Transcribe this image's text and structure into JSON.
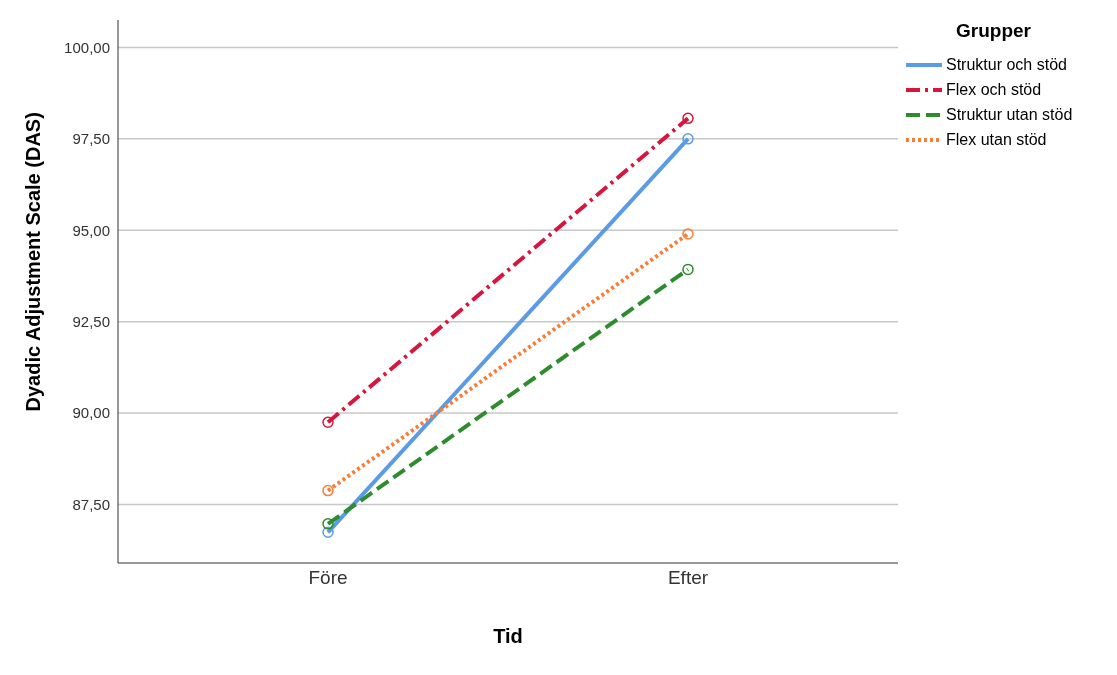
{
  "chart_data": {
    "type": "line",
    "xlabel": "Tid",
    "ylabel": "Dyadic Adjustment Scale (DAS)",
    "legend_title": "Grupper",
    "categories": [
      "Före",
      "Efter"
    ],
    "series": [
      {
        "name": "Struktur och stöd",
        "color": "#5b9be6",
        "values": [
          86.74,
          97.5
        ],
        "line_style": "solid"
      },
      {
        "name": "Flex och stöd",
        "color": "#d6163c",
        "values": [
          89.75,
          98.06
        ],
        "line_style": "dashdot"
      },
      {
        "name": "Struktur utan stöd",
        "color": "#2e8b2e",
        "values": [
          86.97,
          93.93
        ],
        "line_style": "dashed"
      },
      {
        "name": "Flex utan stöd",
        "color": "#f57f3a",
        "values": [
          87.88,
          94.9
        ],
        "line_style": "dotted"
      }
    ],
    "ylim": [
      85.9,
      100.75
    ],
    "yticks": [
      {
        "value": 87.5,
        "label": "87,50"
      },
      {
        "value": 90,
        "label": "90,00"
      },
      {
        "value": 92.5,
        "label": "92,50"
      },
      {
        "value": 95,
        "label": "95,00"
      },
      {
        "value": 97.5,
        "label": "97,50"
      },
      {
        "value": 100,
        "label": "100,00"
      }
    ],
    "grid": "y",
    "legend": "top right",
    "marker": "circle"
  }
}
